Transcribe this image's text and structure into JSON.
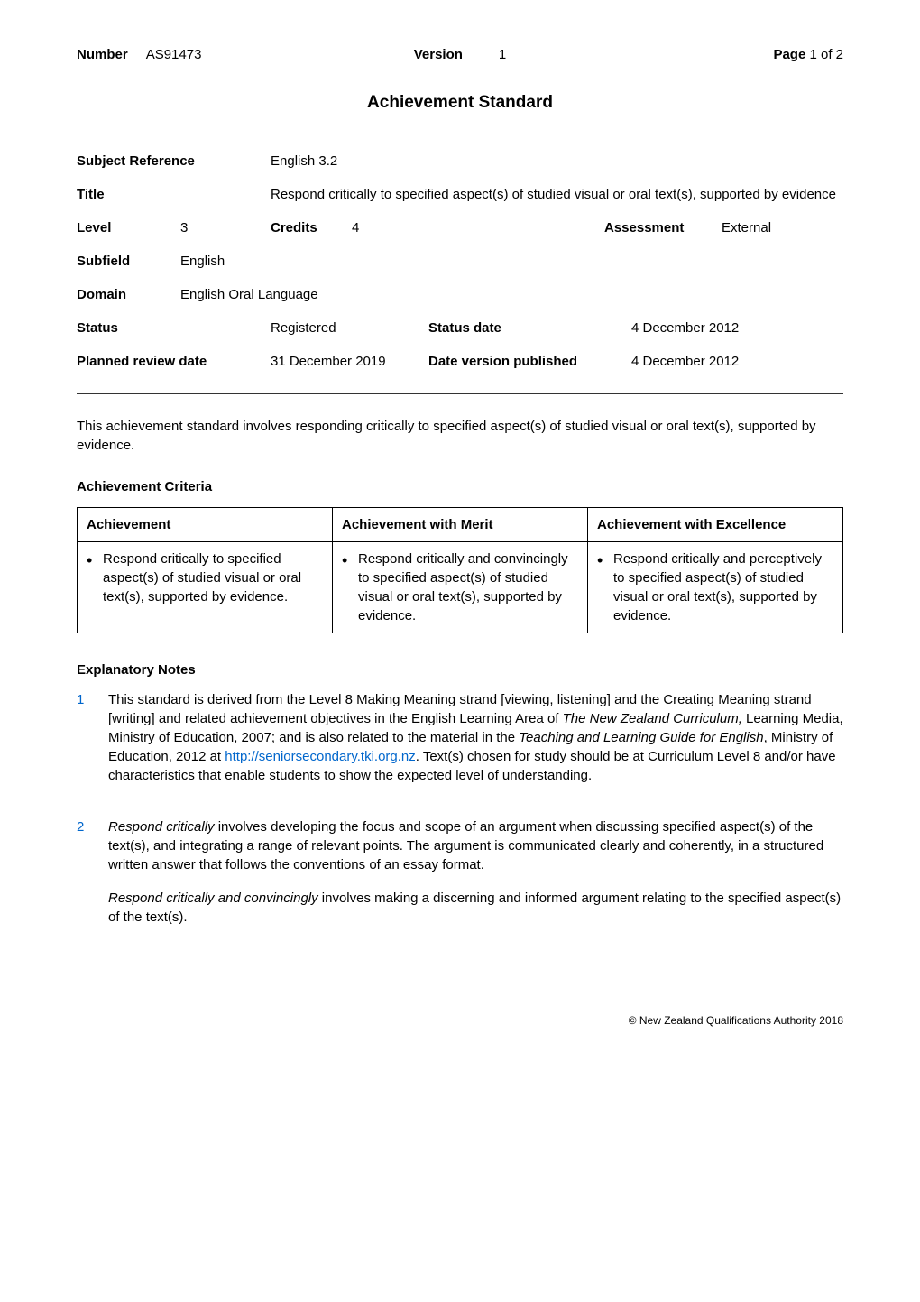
{
  "header": {
    "number_label": "Number",
    "number_value": "AS91473",
    "version_label": "Version",
    "version_value": "1",
    "page_label": "Page",
    "page_value": "1 of 2"
  },
  "title": "Achievement Standard",
  "meta": {
    "subject_ref_label": "Subject Reference",
    "subject_ref_value": "English 3.2",
    "title_label": "Title",
    "title_value": "Respond critically to specified aspect(s) of studied visual or oral text(s), supported by evidence",
    "level_label": "Level",
    "level_value": "3",
    "credits_label": "Credits",
    "credits_value": "4",
    "assessment_label": "Assessment",
    "assessment_value": "External",
    "subfield_label": "Subfield",
    "subfield_value": "English",
    "domain_label": "Domain",
    "domain_value": "English Oral Language",
    "status_label": "Status",
    "status_value": "Registered",
    "status_date_label": "Status date",
    "status_date_value": "4 December 2012",
    "planned_review_label": "Planned review date",
    "planned_review_value": "31 December 2019",
    "date_published_label": "Date version published",
    "date_published_value": "4 December 2012"
  },
  "intro": "This achievement standard involves responding critically to specified aspect(s) of studied visual or oral text(s), supported by evidence.",
  "criteria": {
    "heading": "Achievement Criteria",
    "headers": [
      "Achievement",
      "Achievement with Merit",
      "Achievement with Excellence"
    ],
    "cells": [
      "Respond critically to specified aspect(s) of studied visual or oral text(s), supported by evidence.",
      "Respond critically and convincingly to specified aspect(s) of studied visual or oral text(s), supported by evidence.",
      "Respond critically and perceptively to specified aspect(s) of studied visual or oral text(s), supported by evidence."
    ]
  },
  "explanatory": {
    "heading": "Explanatory Notes",
    "notes": [
      {
        "num": "1",
        "text_before": "This standard is derived from the Level 8 Making Meaning strand [viewing, listening] and the Creating Meaning strand [writing] and related achievement objectives in the English Learning Area of ",
        "italic1": "The New Zealand Curriculum,",
        "text_mid1": " Learning Media, Ministry of Education, 2007; and is also related to the material in the ",
        "italic2": "Teaching and Learning Guide for English",
        "text_mid2": ", Ministry of Education, 2012 at ",
        "link": "http://seniorsecondary.tki.org.nz",
        "text_after": ". Text(s) chosen for study should be at Curriculum Level 8 and/or have characteristics that enable students to show the expected level of understanding."
      },
      {
        "num": "2",
        "para1_italic": "Respond critically",
        "para1_text": " involves developing the focus and scope of an argument when discussing specified aspect(s) of the text(s), and integrating a range of relevant points.  The argument is communicated clearly and coherently, in a structured written answer that follows the conventions of an essay format.",
        "para2_italic": "Respond critically and convincingly",
        "para2_text": " involves making a discerning and informed argument relating to the specified aspect(s) of the text(s)."
      }
    ]
  },
  "footer": "©  New Zealand Qualifications Authority 2018",
  "colors": {
    "note_number": "#0066cc",
    "link": "#0066cc",
    "border": "#000000",
    "hr": "#333333",
    "text": "#000000",
    "background": "#ffffff"
  }
}
